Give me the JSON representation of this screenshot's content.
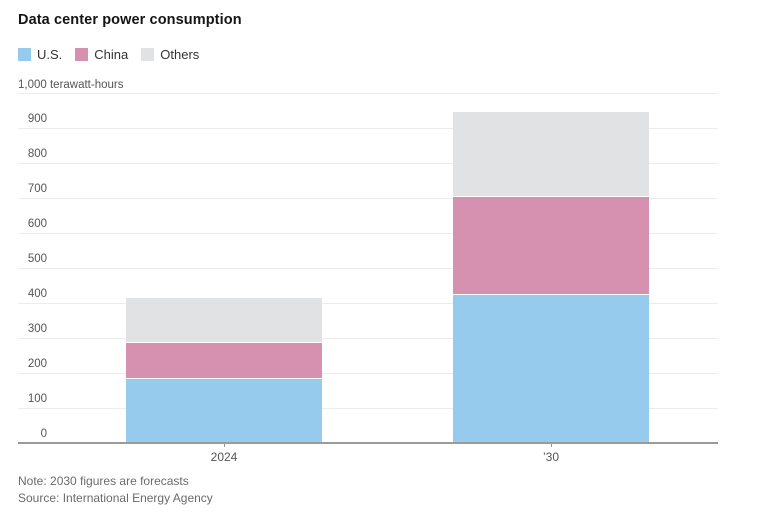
{
  "header": {
    "title": "Data center power consumption"
  },
  "legend": [
    {
      "label": "U.S.",
      "color": "#97cbee"
    },
    {
      "label": "China",
      "color": "#d691b1"
    },
    {
      "label": "Others",
      "color": "#e1e2e4"
    }
  ],
  "unit_label": "1,000 terawatt-hours",
  "chart_data": {
    "type": "bar",
    "stacked": true,
    "title": "Data center power consumption",
    "ylabel": "1,000 terawatt-hours",
    "categories": [
      "2024",
      "’30"
    ],
    "series": [
      {
        "name": "U.S.",
        "color": "#97cbee",
        "values": [
          185,
          425
        ]
      },
      {
        "name": "China",
        "color": "#d691b1",
        "values": [
          105,
          280
        ]
      },
      {
        "name": "Others",
        "color": "#e1e2e4",
        "values": [
          125,
          240
        ]
      }
    ],
    "totals": [
      415,
      945
    ],
    "ylim": [
      0,
      1000
    ],
    "ytick_interval": 100,
    "grid": true,
    "legend_position": "top-left",
    "baseline_value": 0
  },
  "footer": {
    "note": "Note: 2030 figures are forecasts",
    "source": "Source: International Energy Agency"
  }
}
